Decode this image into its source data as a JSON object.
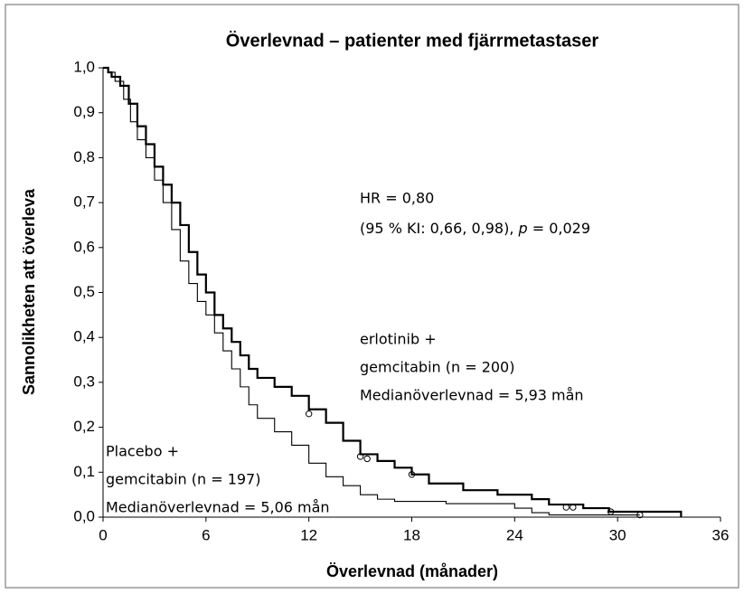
{
  "chart_data": {
    "type": "step",
    "title": "Överlevnad – patienter med fjärrmetastaser",
    "x_label": "Överlevnad (månader)",
    "y_label": "Sannolikheten att överleva",
    "xlim": [
      0,
      36
    ],
    "ylim": [
      0,
      1
    ],
    "xticks": [
      0,
      6,
      12,
      18,
      24,
      30,
      36
    ],
    "yticks": [
      {
        "value": 0,
        "label": "0,0"
      },
      {
        "value": 0.1,
        "label": "0,1"
      },
      {
        "value": 0.2,
        "label": "0,2"
      },
      {
        "value": 0.3,
        "label": "0,3"
      },
      {
        "value": 0.4,
        "label": "0,4"
      },
      {
        "value": 0.5,
        "label": "0,5"
      },
      {
        "value": 0.6,
        "label": "0,6"
      },
      {
        "value": 0.7,
        "label": "0,7"
      },
      {
        "value": 0.8,
        "label": "0,8"
      },
      {
        "value": 0.9,
        "label": "0,9"
      },
      {
        "value": 1,
        "label": "1,0"
      }
    ],
    "series": [
      {
        "color": "#000000",
        "width": 2.2,
        "x": [
          0,
          0.3,
          0.5,
          1,
          1.5,
          2,
          2.5,
          3,
          3.5,
          4,
          4.5,
          5,
          5.5,
          6,
          6.5,
          7,
          7.5,
          8,
          8.5,
          9,
          10,
          11,
          12,
          13,
          14,
          15,
          16,
          17,
          18,
          19,
          21,
          23,
          25,
          26,
          28,
          29.5,
          33.7,
          33.7
        ],
        "values": [
          1,
          0.99,
          0.98,
          0.96,
          0.92,
          0.87,
          0.83,
          0.78,
          0.74,
          0.7,
          0.65,
          0.59,
          0.54,
          0.5,
          0.45,
          0.42,
          0.39,
          0.36,
          0.33,
          0.31,
          0.29,
          0.27,
          0.24,
          0.21,
          0.17,
          0.14,
          0.125,
          0.11,
          0.095,
          0.075,
          0.06,
          0.05,
          0.04,
          0.028,
          0.02,
          0.012,
          0.012,
          0
        ],
        "censor_x": [
          12,
          15,
          15.4,
          18,
          27,
          27.4,
          29.6,
          31.3
        ],
        "censor_values": [
          0.23,
          0.135,
          0.13,
          0.095,
          0.022,
          0.022,
          0.012,
          0.005
        ]
      },
      {
        "color": "#000000",
        "width": 1.1,
        "x": [
          0,
          0.3,
          0.7,
          1.2,
          1.6,
          2,
          2.5,
          3,
          3.5,
          4,
          4.5,
          5,
          5.5,
          6,
          6.5,
          7,
          7.5,
          8,
          8.5,
          9,
          10,
          11,
          12,
          13,
          14,
          15,
          16,
          17,
          20,
          24,
          25,
          26,
          31.3
        ],
        "values": [
          1,
          0.99,
          0.97,
          0.93,
          0.88,
          0.84,
          0.8,
          0.75,
          0.7,
          0.64,
          0.57,
          0.52,
          0.48,
          0.45,
          0.41,
          0.37,
          0.33,
          0.29,
          0.25,
          0.22,
          0.19,
          0.16,
          0.12,
          0.09,
          0.07,
          0.05,
          0.04,
          0.035,
          0.03,
          0.02,
          0.01,
          0.005,
          0.005
        ]
      }
    ],
    "annotations": {
      "hr": "HR = 0,80",
      "ci": [
        "(95 % KI: 0,66, 0,98), ",
        "p",
        " = 0,029"
      ],
      "erlotinib": [
        "erlotinib +",
        "gemcitabin (n = 200)",
        "Medianöverlevnad = 5,93 mån"
      ],
      "placebo": [
        "Placebo +",
        "gemcitabin (n = 197)",
        "Medianöverlevnad = 5,06 mån"
      ]
    }
  }
}
